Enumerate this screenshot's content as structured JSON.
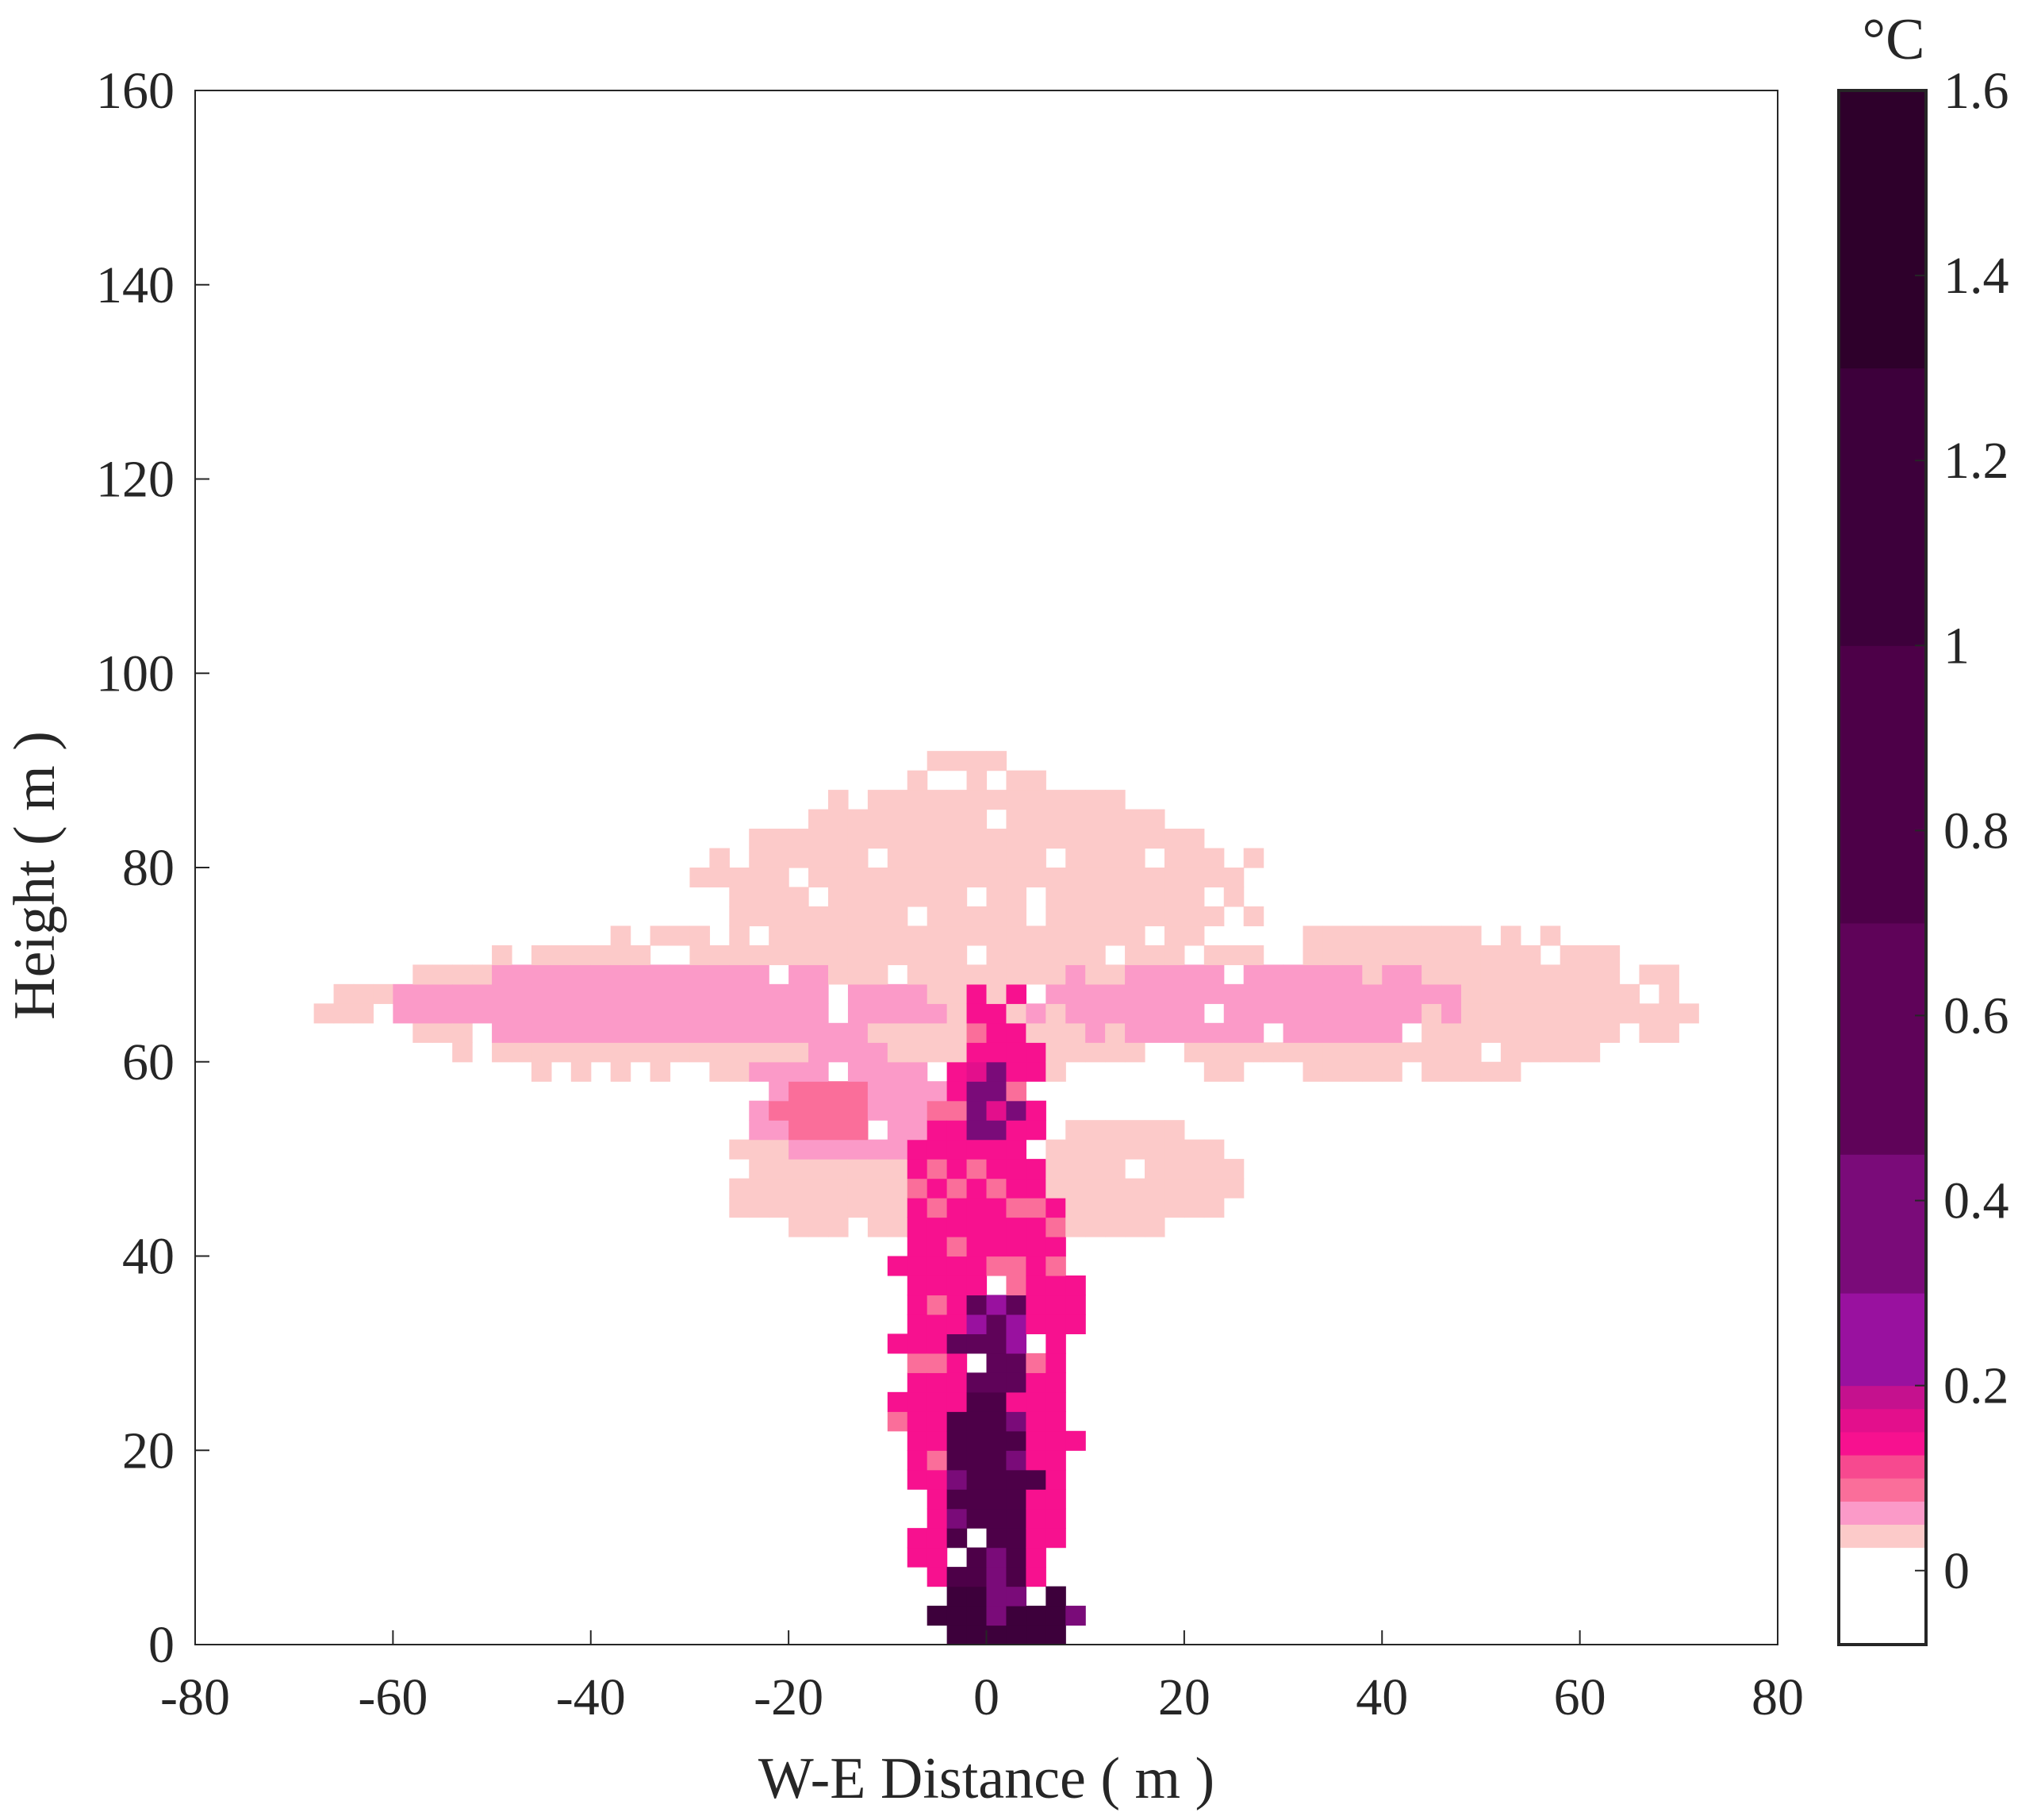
{
  "chart_data": {
    "type": "heatmap",
    "title": "",
    "xlabel": "W-E Distance ( m )",
    "ylabel": "Height ( m )",
    "xlim": [
      -80,
      80
    ],
    "ylim": [
      0,
      160
    ],
    "xticks": [
      "-80",
      "-60",
      "-40",
      "-20",
      "0",
      "20",
      "40",
      "60",
      "80"
    ],
    "yticks": [
      "0",
      "20",
      "40",
      "60",
      "80",
      "100",
      "120",
      "140",
      "160"
    ],
    "grid": false,
    "cell_size_m": 2,
    "colorbar": {
      "unit": "°C",
      "range": [
        -0.08,
        1.6
      ],
      "ticks": [
        "0",
        "0.2",
        "0.4",
        "0.6",
        "0.8",
        "1",
        "1.2",
        "1.4",
        "1.6"
      ],
      "levels": [
        {
          "min": -0.08,
          "max": 0.025,
          "color": "#ffffff"
        },
        {
          "min": 0.025,
          "max": 0.05,
          "color": "#fccac9"
        },
        {
          "min": 0.05,
          "max": 0.075,
          "color": "#fb9ac8"
        },
        {
          "min": 0.075,
          "max": 0.1,
          "color": "#fa6e9a"
        },
        {
          "min": 0.1,
          "max": 0.125,
          "color": "#f7498f"
        },
        {
          "min": 0.125,
          "max": 0.15,
          "color": "#f7118f"
        },
        {
          "min": 0.15,
          "max": 0.175,
          "color": "#e30f8c"
        },
        {
          "min": 0.175,
          "max": 0.2,
          "color": "#c5118e"
        },
        {
          "min": 0.2,
          "max": 0.3,
          "color": "#99119f"
        },
        {
          "min": 0.3,
          "max": 0.45,
          "color": "#7a0b79"
        },
        {
          "min": 0.45,
          "max": 0.7,
          "color": "#5f0359"
        },
        {
          "min": 0.7,
          "max": 1.0,
          "color": "#4d0048"
        },
        {
          "min": 1.0,
          "max": 1.3,
          "color": "#3d003b"
        },
        {
          "min": 1.3,
          "max": 1.6,
          "color": "#2e002b"
        }
      ]
    },
    "regions": [
      {
        "type": "ellipse",
        "cx": -12,
        "cy": 66,
        "rx": 48,
        "ry": 8,
        "value": 0.045
      },
      {
        "type": "ellipse",
        "cx": 40,
        "cy": 66,
        "rx": 30,
        "ry": 8,
        "value": 0.045
      },
      {
        "type": "ellipse",
        "cx": 60,
        "cy": 64,
        "rx": 12,
        "ry": 3,
        "value": 0.045
      },
      {
        "type": "ellipse",
        "cx": -62,
        "cy": 66,
        "rx": 7,
        "ry": 2.5,
        "value": 0.045
      },
      {
        "type": "ellipse",
        "cx": 0,
        "cy": 78,
        "rx": 28,
        "ry": 10,
        "value": 0.045
      },
      {
        "type": "ellipse",
        "cx": 0,
        "cy": 88,
        "rx": 8,
        "ry": 4,
        "value": 0.045
      },
      {
        "type": "ellipse",
        "cx": -12,
        "cy": 48,
        "rx": 14,
        "ry": 6,
        "value": 0.045
      },
      {
        "type": "ellipse",
        "cx": 14,
        "cy": 48,
        "rx": 12,
        "ry": 6,
        "value": 0.045
      },
      {
        "type": "ellipse",
        "cx": -32,
        "cy": 66,
        "rx": 28,
        "ry": 4,
        "value": 0.065
      },
      {
        "type": "ellipse",
        "cx": 26,
        "cy": 66,
        "rx": 22,
        "ry": 4,
        "value": 0.065
      },
      {
        "type": "ellipse",
        "cx": -14,
        "cy": 56,
        "rx": 10,
        "ry": 6,
        "value": 0.065
      },
      {
        "type": "ellipse",
        "cx": -16,
        "cy": 55,
        "rx": 5,
        "ry": 3.5,
        "value": 0.09
      },
      {
        "type": "ellipse",
        "cx": 0,
        "cy": 30,
        "rx": 9,
        "ry": 32,
        "value": 0.14
      },
      {
        "type": "ellipse",
        "cx": 1,
        "cy": 52,
        "rx": 5,
        "ry": 15,
        "value": 0.14
      },
      {
        "type": "ellipse",
        "cx": 0,
        "cy": 14,
        "rx": 5,
        "ry": 14,
        "value": 0.8
      },
      {
        "type": "ellipse",
        "cx": 1,
        "cy": 30,
        "rx": 4,
        "ry": 6,
        "value": 0.5
      },
      {
        "type": "ellipse",
        "cx": 1,
        "cy": 3,
        "rx": 8,
        "ry": 3,
        "value": 1.0
      },
      {
        "type": "ellipse",
        "cx": 0,
        "cy": 56,
        "rx": 3,
        "ry": 4,
        "value": 0.3
      }
    ]
  }
}
